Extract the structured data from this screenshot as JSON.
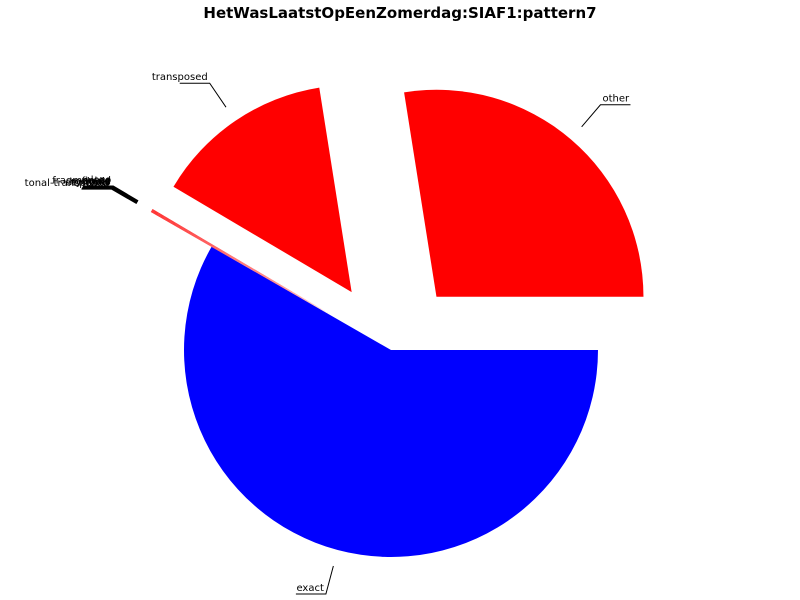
{
  "chart_data": {
    "type": "pie",
    "title": "HetWasLaatstOpEenZomerdag:SIAF1:pattern7",
    "slices": [
      {
        "label": "exact",
        "value": 58.3,
        "color": "#0000ff"
      },
      {
        "label": "other",
        "value": 27.5,
        "color": "#ff0000"
      },
      {
        "label": "transposed",
        "value": 14.0,
        "color": "#ff0000"
      },
      {
        "label": "loco",
        "value": 0.025,
        "color": "#ff0000"
      },
      {
        "label": "fragmented",
        "value": 0.025,
        "color": "#ff0000"
      },
      {
        "label": "figure",
        "value": 0.025,
        "color": "#ff0000"
      },
      {
        "label": "melodic",
        "value": 0.025,
        "color": "#ff0000"
      },
      {
        "label": "tonal",
        "value": 0.025,
        "color": "#ff0000"
      },
      {
        "label": "rhythmic",
        "value": 0.025,
        "color": "#ff0000"
      },
      {
        "label": "contour",
        "value": 0.025,
        "color": "#ff0000"
      },
      {
        "label": "tonal-transposed",
        "value": 0.025,
        "color": "#ff0000"
      }
    ],
    "legend": "none"
  }
}
